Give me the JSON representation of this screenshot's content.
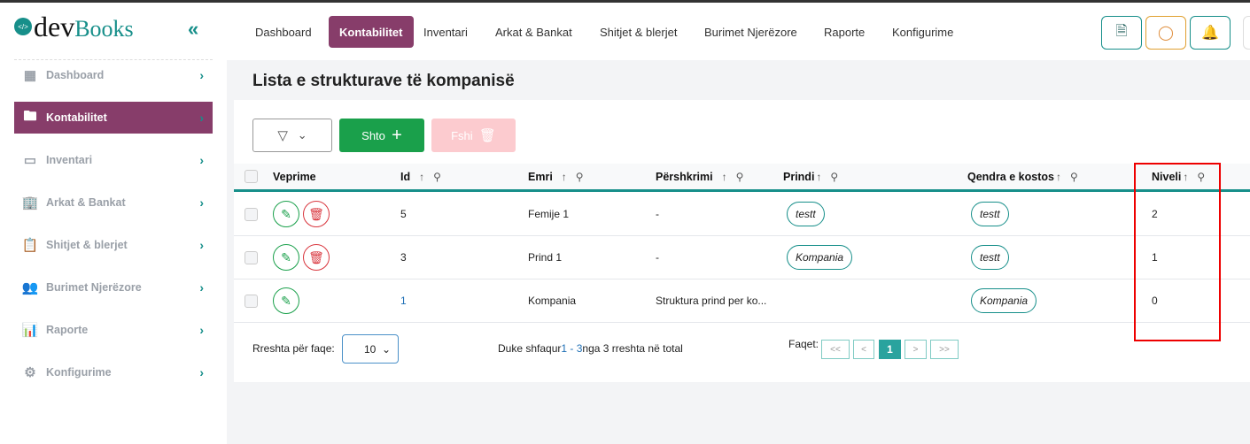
{
  "app": {
    "logo_dev": "dev",
    "logo_books": "Books",
    "logo_icon": "</>"
  },
  "nav": [
    {
      "label": "Dashboard"
    },
    {
      "label": "Kontabilitet",
      "active": true
    },
    {
      "label": "Inventari"
    },
    {
      "label": "Arkat & Bankat"
    },
    {
      "label": "Shitjet & blerjet"
    },
    {
      "label": "Burimet Njerëzore"
    },
    {
      "label": "Raporte"
    },
    {
      "label": "Konfigurime"
    }
  ],
  "header_icons": [
    "file-add-icon",
    "chat-icon",
    "bell-icon"
  ],
  "sidebar": {
    "items": [
      {
        "label": "Dashboard",
        "icon": "grid-icon"
      },
      {
        "label": "Kontabilitet",
        "icon": "folder-icon",
        "active": true
      },
      {
        "label": "Inventari",
        "icon": "box-icon"
      },
      {
        "label": "Arkat & Bankat",
        "icon": "bank-icon"
      },
      {
        "label": "Shitjet & blerjet",
        "icon": "clipboard-icon"
      },
      {
        "label": "Burimet Njerëzore",
        "icon": "users-icon"
      },
      {
        "label": "Raporte",
        "icon": "report-icon"
      },
      {
        "label": "Konfigurime",
        "icon": "gear-icon"
      }
    ]
  },
  "page": {
    "title": "Lista e strukturave të kompanisë"
  },
  "toolbar": {
    "add_label": "Shto",
    "delete_label": "Fshi"
  },
  "table": {
    "headers": [
      "Veprime",
      "Id",
      "Emri",
      "Përshkrimi",
      "Prindi",
      "Qendra e kostos",
      "Niveli"
    ],
    "rows": [
      {
        "id": "5",
        "name": "Femije 1",
        "desc": "-",
        "parent": "testt",
        "cost_center": "testt",
        "level": "2",
        "can_delete": true
      },
      {
        "id": "3",
        "name": "Prind 1",
        "desc": "-",
        "parent": "Kompania",
        "cost_center": "testt",
        "level": "1",
        "can_delete": true
      },
      {
        "id": "1",
        "name": "Kompania",
        "desc": "Struktura prind per ko...",
        "parent": "",
        "cost_center": "Kompania",
        "level": "0",
        "can_delete": false
      }
    ]
  },
  "footer": {
    "rows_per_page_label": "Rreshta për faqe:",
    "rows_per_page": "10",
    "summary_pre": "Duke shfaqur ",
    "summary_range": "1 - 3",
    "summary_post": " nga 3 rreshta në total",
    "pages_label": "Faqet:",
    "first": "<<",
    "prev": "<",
    "current": "1",
    "next": ">",
    "last": ">>"
  },
  "colors": {
    "accent": "#178f8a",
    "active": "#873d6a",
    "add": "#1aa04b",
    "delete_disabled": "#fccbcf",
    "highlight": "#e00000"
  }
}
